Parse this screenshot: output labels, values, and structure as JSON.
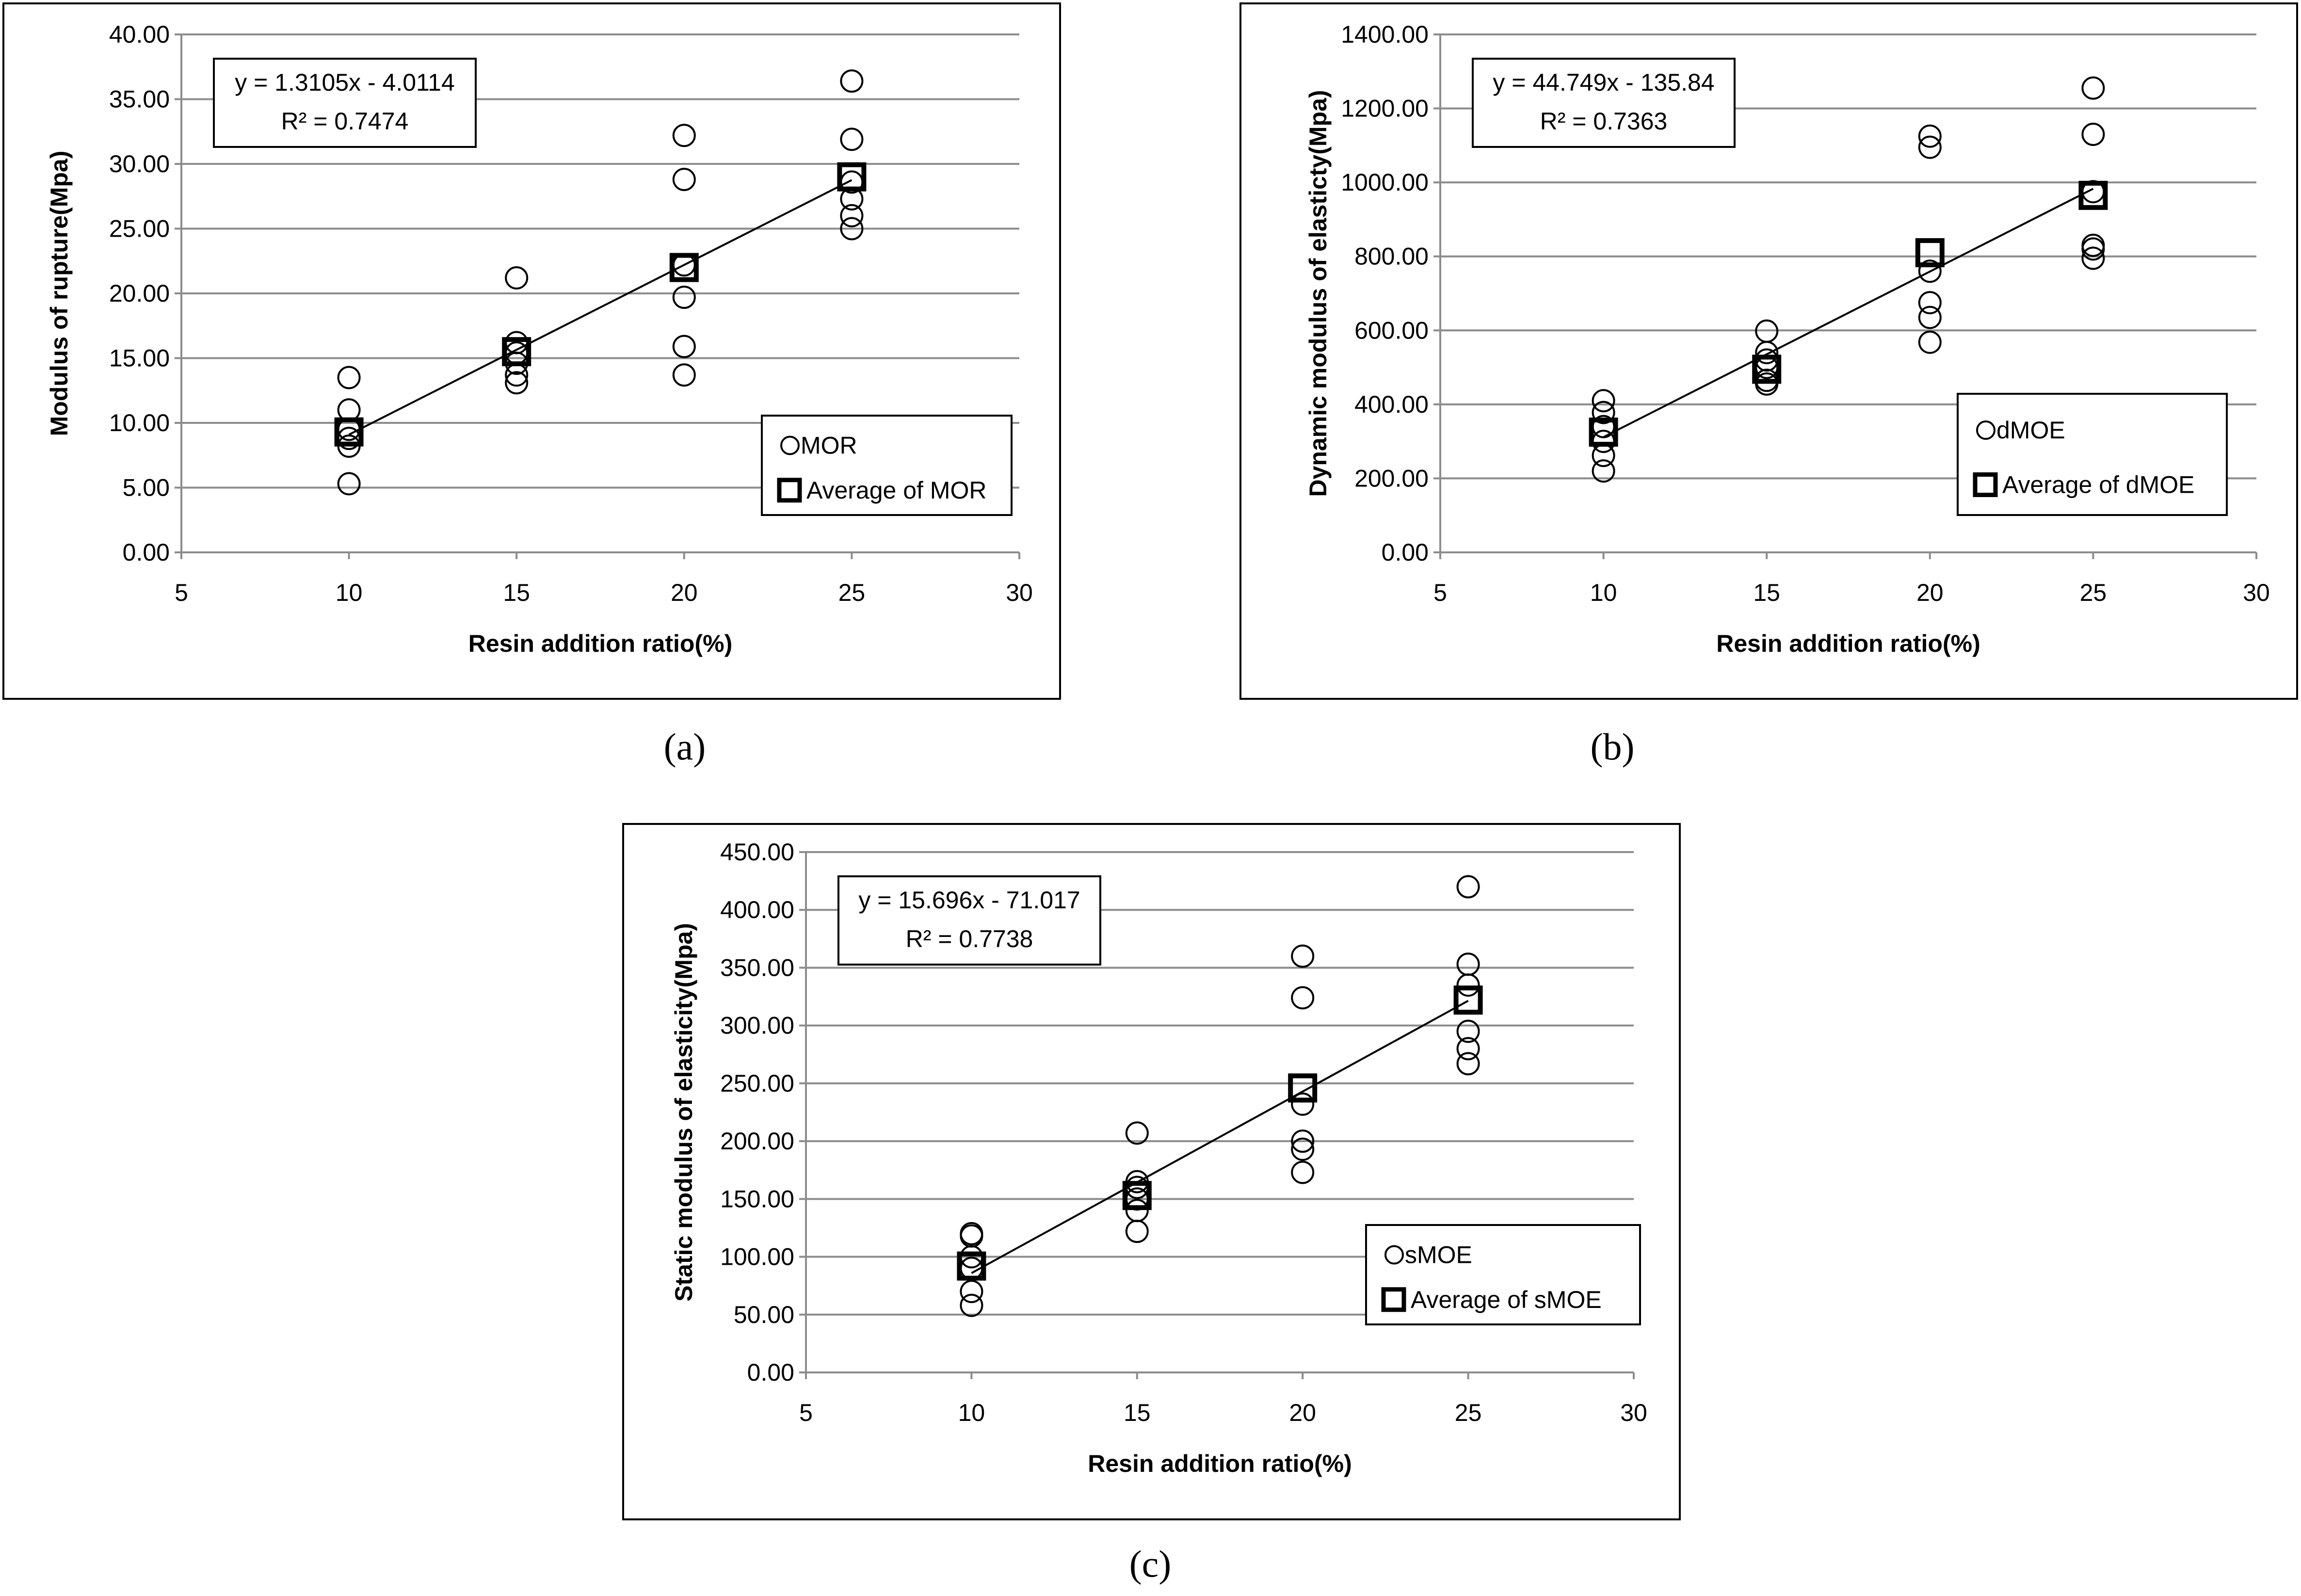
{
  "chart_data": [
    {
      "type": "scatter",
      "panel_label": "(a)",
      "xlabel": "Resin addition ratio(%)",
      "ylabel": "Modulus of rupture(Mpa)",
      "xlim": [
        5,
        30
      ],
      "ylim": [
        0,
        40
      ],
      "x_ticks": [
        "5",
        "10",
        "15",
        "20",
        "25",
        "30"
      ],
      "y_ticks": [
        "0.00",
        "5.00",
        "10.00",
        "15.00",
        "20.00",
        "25.00",
        "30.00",
        "35.00",
        "40.00"
      ],
      "grid": "horizontal",
      "legend_position": "bottom-right",
      "equation": "y = 1.3105x - 4.0114",
      "r2_label": "R² = 0.7474",
      "trendline": {
        "slope": 1.3105,
        "intercept": -4.0114,
        "x_range": [
          10,
          25
        ]
      },
      "series": [
        {
          "name": "MOR",
          "marker": "circle",
          "points": [
            [
              10,
              5.3
            ],
            [
              10,
              8.2
            ],
            [
              10,
              8.8
            ],
            [
              10,
              9.5
            ],
            [
              10,
              11.0
            ],
            [
              10,
              13.5
            ],
            [
              15,
              13.1
            ],
            [
              15,
              13.7
            ],
            [
              15,
              14.6
            ],
            [
              15,
              15.4
            ],
            [
              15,
              16.2
            ],
            [
              15,
              21.2
            ],
            [
              20,
              13.7
            ],
            [
              20,
              15.9
            ],
            [
              20,
              19.7
            ],
            [
              20,
              22.2
            ],
            [
              20,
              28.8
            ],
            [
              20,
              32.2
            ],
            [
              25,
              25.0
            ],
            [
              25,
              26.0
            ],
            [
              25,
              27.3
            ],
            [
              25,
              28.6
            ],
            [
              25,
              31.9
            ],
            [
              25,
              36.4
            ]
          ]
        },
        {
          "name": "Average of MOR",
          "marker": "square",
          "points": [
            [
              10,
              9.3
            ],
            [
              15,
              15.5
            ],
            [
              20,
              22.0
            ],
            [
              25,
              29.0
            ]
          ]
        }
      ]
    },
    {
      "type": "scatter",
      "panel_label": "(b)",
      "xlabel": "Resin addition ratio(%)",
      "ylabel": "Dynamic modulus of elasticty(Mpa)",
      "xlim": [
        5,
        30
      ],
      "ylim": [
        0,
        1400
      ],
      "x_ticks": [
        "5",
        "10",
        "15",
        "20",
        "25",
        "30"
      ],
      "y_ticks": [
        "0.00",
        "200.00",
        "400.00",
        "600.00",
        "800.00",
        "1000.00",
        "1200.00",
        "1400.00"
      ],
      "grid": "horizontal",
      "legend_position": "bottom-right",
      "equation": "y = 44.749x - 135.84",
      "r2_label": "R² = 0.7363",
      "trendline": {
        "slope": 44.749,
        "intercept": -135.84,
        "x_range": [
          10,
          25
        ]
      },
      "series": [
        {
          "name": "dMOE",
          "marker": "circle",
          "points": [
            [
              10,
              220
            ],
            [
              10,
              262
            ],
            [
              10,
              300
            ],
            [
              10,
              340
            ],
            [
              10,
              378
            ],
            [
              10,
              410
            ],
            [
              15,
              455
            ],
            [
              15,
              465
            ],
            [
              15,
              500
            ],
            [
              15,
              520
            ],
            [
              15,
              540
            ],
            [
              15,
              598
            ],
            [
              20,
              568
            ],
            [
              20,
              635
            ],
            [
              20,
              675
            ],
            [
              20,
              760
            ],
            [
              20,
              1095
            ],
            [
              20,
              1125
            ],
            [
              25,
              795
            ],
            [
              25,
              820
            ],
            [
              25,
              830
            ],
            [
              25,
              975
            ],
            [
              25,
              1130
            ],
            [
              25,
              1255
            ]
          ]
        },
        {
          "name": "Average of dMOE",
          "marker": "square",
          "points": [
            [
              10,
              325
            ],
            [
              15,
              495
            ],
            [
              20,
              810
            ],
            [
              25,
              965
            ]
          ]
        }
      ]
    },
    {
      "type": "scatter",
      "panel_label": "(c)",
      "xlabel": "Resin addition ratio(%)",
      "ylabel": "Static modulus of elasticity(Mpa)",
      "xlim": [
        5,
        30
      ],
      "ylim": [
        0,
        450
      ],
      "x_ticks": [
        "5",
        "10",
        "15",
        "20",
        "25",
        "30"
      ],
      "y_ticks": [
        "0.00",
        "50.00",
        "100.00",
        "150.00",
        "200.00",
        "250.00",
        "300.00",
        "350.00",
        "400.00",
        "450.00"
      ],
      "grid": "horizontal",
      "legend_position": "bottom-right",
      "equation": "y = 15.696x - 71.017",
      "r2_label": "R² = 0.7738",
      "trendline": {
        "slope": 15.696,
        "intercept": -71.017,
        "x_range": [
          10,
          25
        ]
      },
      "series": [
        {
          "name": "sMOE",
          "marker": "circle",
          "points": [
            [
              10,
              58
            ],
            [
              10,
              70
            ],
            [
              10,
              90
            ],
            [
              10,
              100
            ],
            [
              10,
              118
            ],
            [
              10,
              120
            ],
            [
              15,
              122
            ],
            [
              15,
              140
            ],
            [
              15,
              150
            ],
            [
              15,
              160
            ],
            [
              15,
              165
            ],
            [
              15,
              207
            ],
            [
              20,
              173
            ],
            [
              20,
              193
            ],
            [
              20,
              200
            ],
            [
              20,
              232
            ],
            [
              20,
              324
            ],
            [
              20,
              360
            ],
            [
              25,
              267
            ],
            [
              25,
              280
            ],
            [
              25,
              295
            ],
            [
              25,
              335
            ],
            [
              25,
              353
            ],
            [
              25,
              420
            ]
          ]
        },
        {
          "name": "Average of sMOE",
          "marker": "square",
          "points": [
            [
              10,
              92
            ],
            [
              15,
              153
            ],
            [
              20,
              246
            ],
            [
              25,
              322
            ]
          ]
        }
      ]
    }
  ]
}
